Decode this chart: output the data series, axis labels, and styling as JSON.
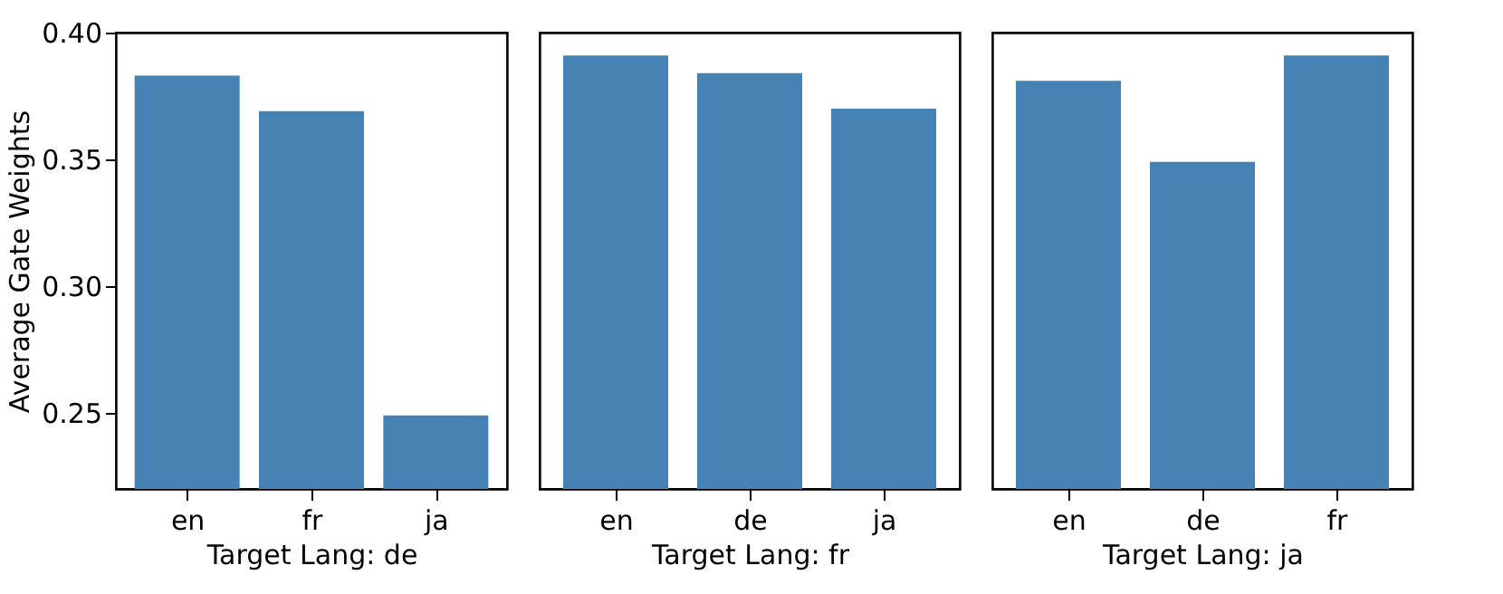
{
  "chart_data": [
    {
      "type": "bar",
      "categories": [
        "en",
        "fr",
        "ja"
      ],
      "values": [
        0.383,
        0.369,
        0.249
      ],
      "color": "#4682b4",
      "xlabel": "Target Lang: de",
      "ylabel": "Average Gate Weights",
      "ylim": [
        0.22,
        0.4
      ],
      "yticks": [
        0.25,
        {
          "value": 0.3,
          "label": "0.30"
        },
        0.35,
        {
          "value": 0.4,
          "label": "0.40"
        }
      ],
      "grid": false
    },
    {
      "type": "bar",
      "categories": [
        "en",
        "de",
        "ja"
      ],
      "values": [
        0.391,
        0.384,
        0.37
      ],
      "color": "#4682b4",
      "xlabel": "Target Lang: fr",
      "ylim": [
        0.22,
        0.4
      ],
      "yticks": [
        0.25,
        0.3,
        0.35,
        0.4
      ],
      "tick_labels": "x",
      "grid": false
    },
    {
      "type": "bar",
      "categories": [
        "en",
        "de",
        "fr"
      ],
      "values": [
        0.381,
        0.349,
        0.391
      ],
      "color": "#4682b4",
      "xlabel": "Target Lang: ja",
      "ylim": [
        0.22,
        0.4
      ],
      "yticks": [
        0.25,
        0.3,
        0.35,
        0.4
      ],
      "tick_labels": "x",
      "grid": false
    }
  ]
}
